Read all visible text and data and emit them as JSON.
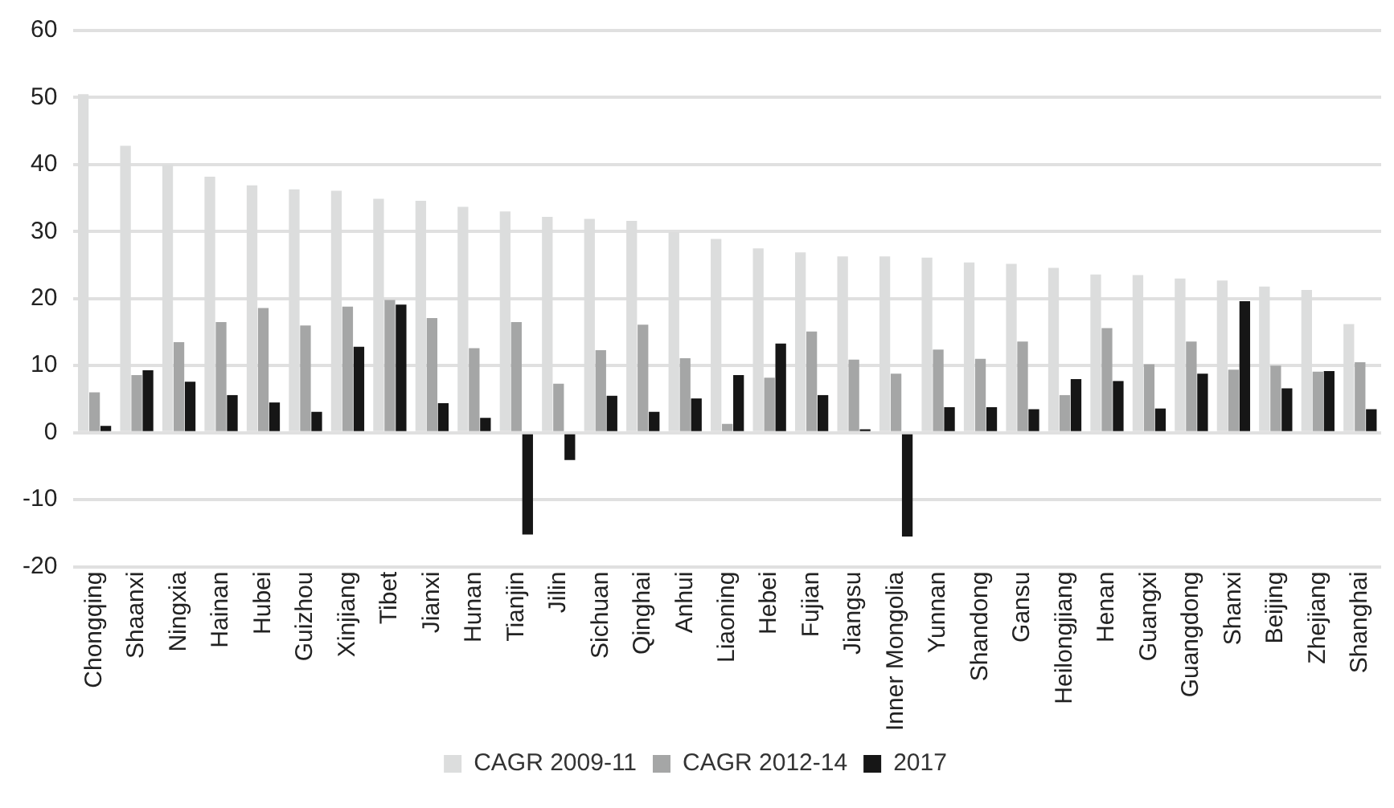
{
  "chart_data": {
    "type": "bar",
    "categories": [
      "Chongqing",
      "Shaanxi",
      "Ningxia",
      "Hainan",
      "Hubei",
      "Guizhou",
      "Xinjiang",
      "Tibet",
      "Jianxi",
      "Hunan",
      "Tianjin",
      "Jilin",
      "Sichuan",
      "Qinghai",
      "Anhui",
      "Liaoning",
      "Hebei",
      "Fujian",
      "Jiangsu",
      "Inner Mongolia",
      "Yunnan",
      "Shandong",
      "Gansu",
      "Heilongjiang",
      "Henan",
      "Guangxi",
      "Guangdong",
      "Shanxi",
      "Beijing",
      "Zhejiang",
      "Shanghai"
    ],
    "series": [
      {
        "name": "CAGR 2009-11",
        "color": "#dcdddd",
        "values": [
          50.5,
          42.8,
          40,
          38.2,
          36.9,
          36.3,
          36.1,
          34.9,
          34.6,
          33.7,
          33,
          32.2,
          31.9,
          31.6,
          29.9,
          28.9,
          27.5,
          26.9,
          26.3,
          26.3,
          26.1,
          25.4,
          25.2,
          24.6,
          23.6,
          23.5,
          23,
          22.7,
          21.8,
          21.3,
          16.2
        ]
      },
      {
        "name": "CAGR 2012-14",
        "color": "#a5a6a6",
        "values": [
          6,
          8.6,
          13.5,
          16.5,
          18.6,
          16,
          18.8,
          19.8,
          17.1,
          12.6,
          16.5,
          7.3,
          12.3,
          16.1,
          11.1,
          1.3,
          8.2,
          15.1,
          10.9,
          8.8,
          12.4,
          11,
          13.6,
          5.6,
          15.6,
          10.2,
          13.6,
          9.4,
          10,
          9.1,
          10.5
        ]
      },
      {
        "name": "2017",
        "color": "#161616",
        "values": [
          1,
          9.3,
          7.6,
          5.6,
          4.5,
          3.1,
          12.8,
          19.1,
          4.4,
          2.2,
          -15.2,
          -4.1,
          5.5,
          3.1,
          5.1,
          8.6,
          13.3,
          5.6,
          0.5,
          -15.5,
          3.8,
          3.8,
          3.5,
          8,
          7.7,
          3.6,
          8.8,
          19.6,
          6.6,
          9.2,
          3.5
        ]
      }
    ],
    "ylim": [
      -20,
      60
    ],
    "yticks": [
      -20,
      -10,
      0,
      10,
      20,
      30,
      40,
      50,
      60
    ],
    "grid": "y",
    "legend": "bottom"
  }
}
